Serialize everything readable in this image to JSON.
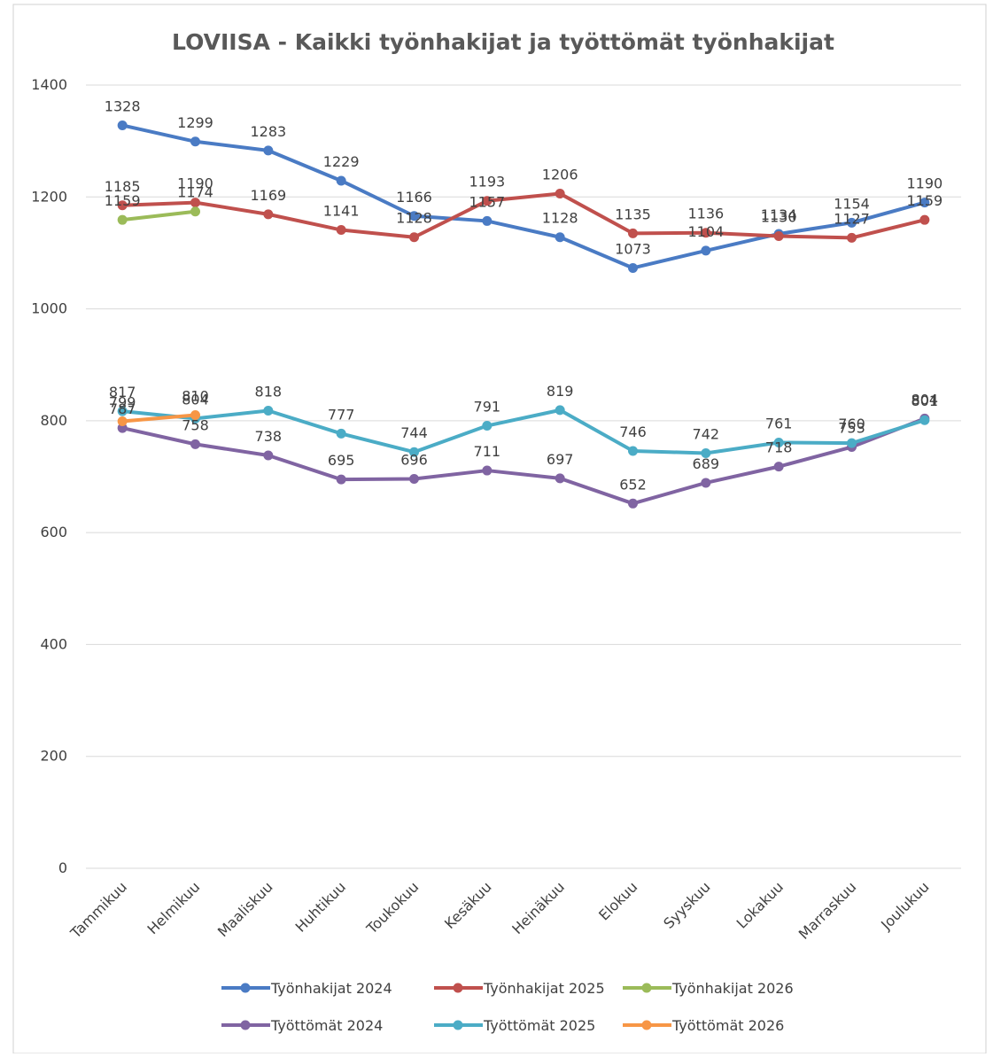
{
  "chart_data": {
    "type": "line",
    "title": "LOVIISA - Kaikki työnhakijat ja työttömät työnhakijat",
    "categories": [
      "Tammikuu",
      "Helmikuu",
      "Maaliskuu",
      "Huhtikuu",
      "Toukokuu",
      "Kesäkuu",
      "Heinäkuu",
      "Elokuu",
      "Syyskuu",
      "Lokakuu",
      "Marraskuu",
      "Joulukuu"
    ],
    "series": [
      {
        "name": "Työnhakijat 2024",
        "color": "#4a7bc4",
        "values": [
          1328,
          1299,
          1283,
          1229,
          1166,
          1157,
          1128,
          1073,
          1104,
          1134,
          1154,
          1190
        ]
      },
      {
        "name": "Työnhakijat 2025",
        "color": "#c0504d",
        "values": [
          1185,
          1190,
          1169,
          1141,
          1128,
          1193,
          1206,
          1135,
          1136,
          1130,
          1127,
          1159
        ]
      },
      {
        "name": "Työnhakijat 2026",
        "color": "#9bbb59",
        "values": [
          1159,
          1174,
          null,
          null,
          null,
          null,
          null,
          null,
          null,
          null,
          null,
          null
        ]
      },
      {
        "name": "Työttömät 2024",
        "color": "#8064a2",
        "values": [
          787,
          758,
          738,
          695,
          696,
          711,
          697,
          652,
          689,
          718,
          753,
          804
        ]
      },
      {
        "name": "Työttömät 2025",
        "color": "#4bacc6",
        "values": [
          817,
          804,
          818,
          777,
          744,
          791,
          819,
          746,
          742,
          761,
          760,
          801
        ]
      },
      {
        "name": "Työttömät 2026",
        "color": "#f79646",
        "values": [
          799,
          810,
          null,
          null,
          null,
          null,
          null,
          null,
          null,
          null,
          null,
          null
        ]
      }
    ],
    "ylim": [
      0,
      1400
    ],
    "yticks": [
      0,
      200,
      400,
      600,
      800,
      1000,
      1200,
      1400
    ],
    "grid": true,
    "legend": "bottom"
  }
}
